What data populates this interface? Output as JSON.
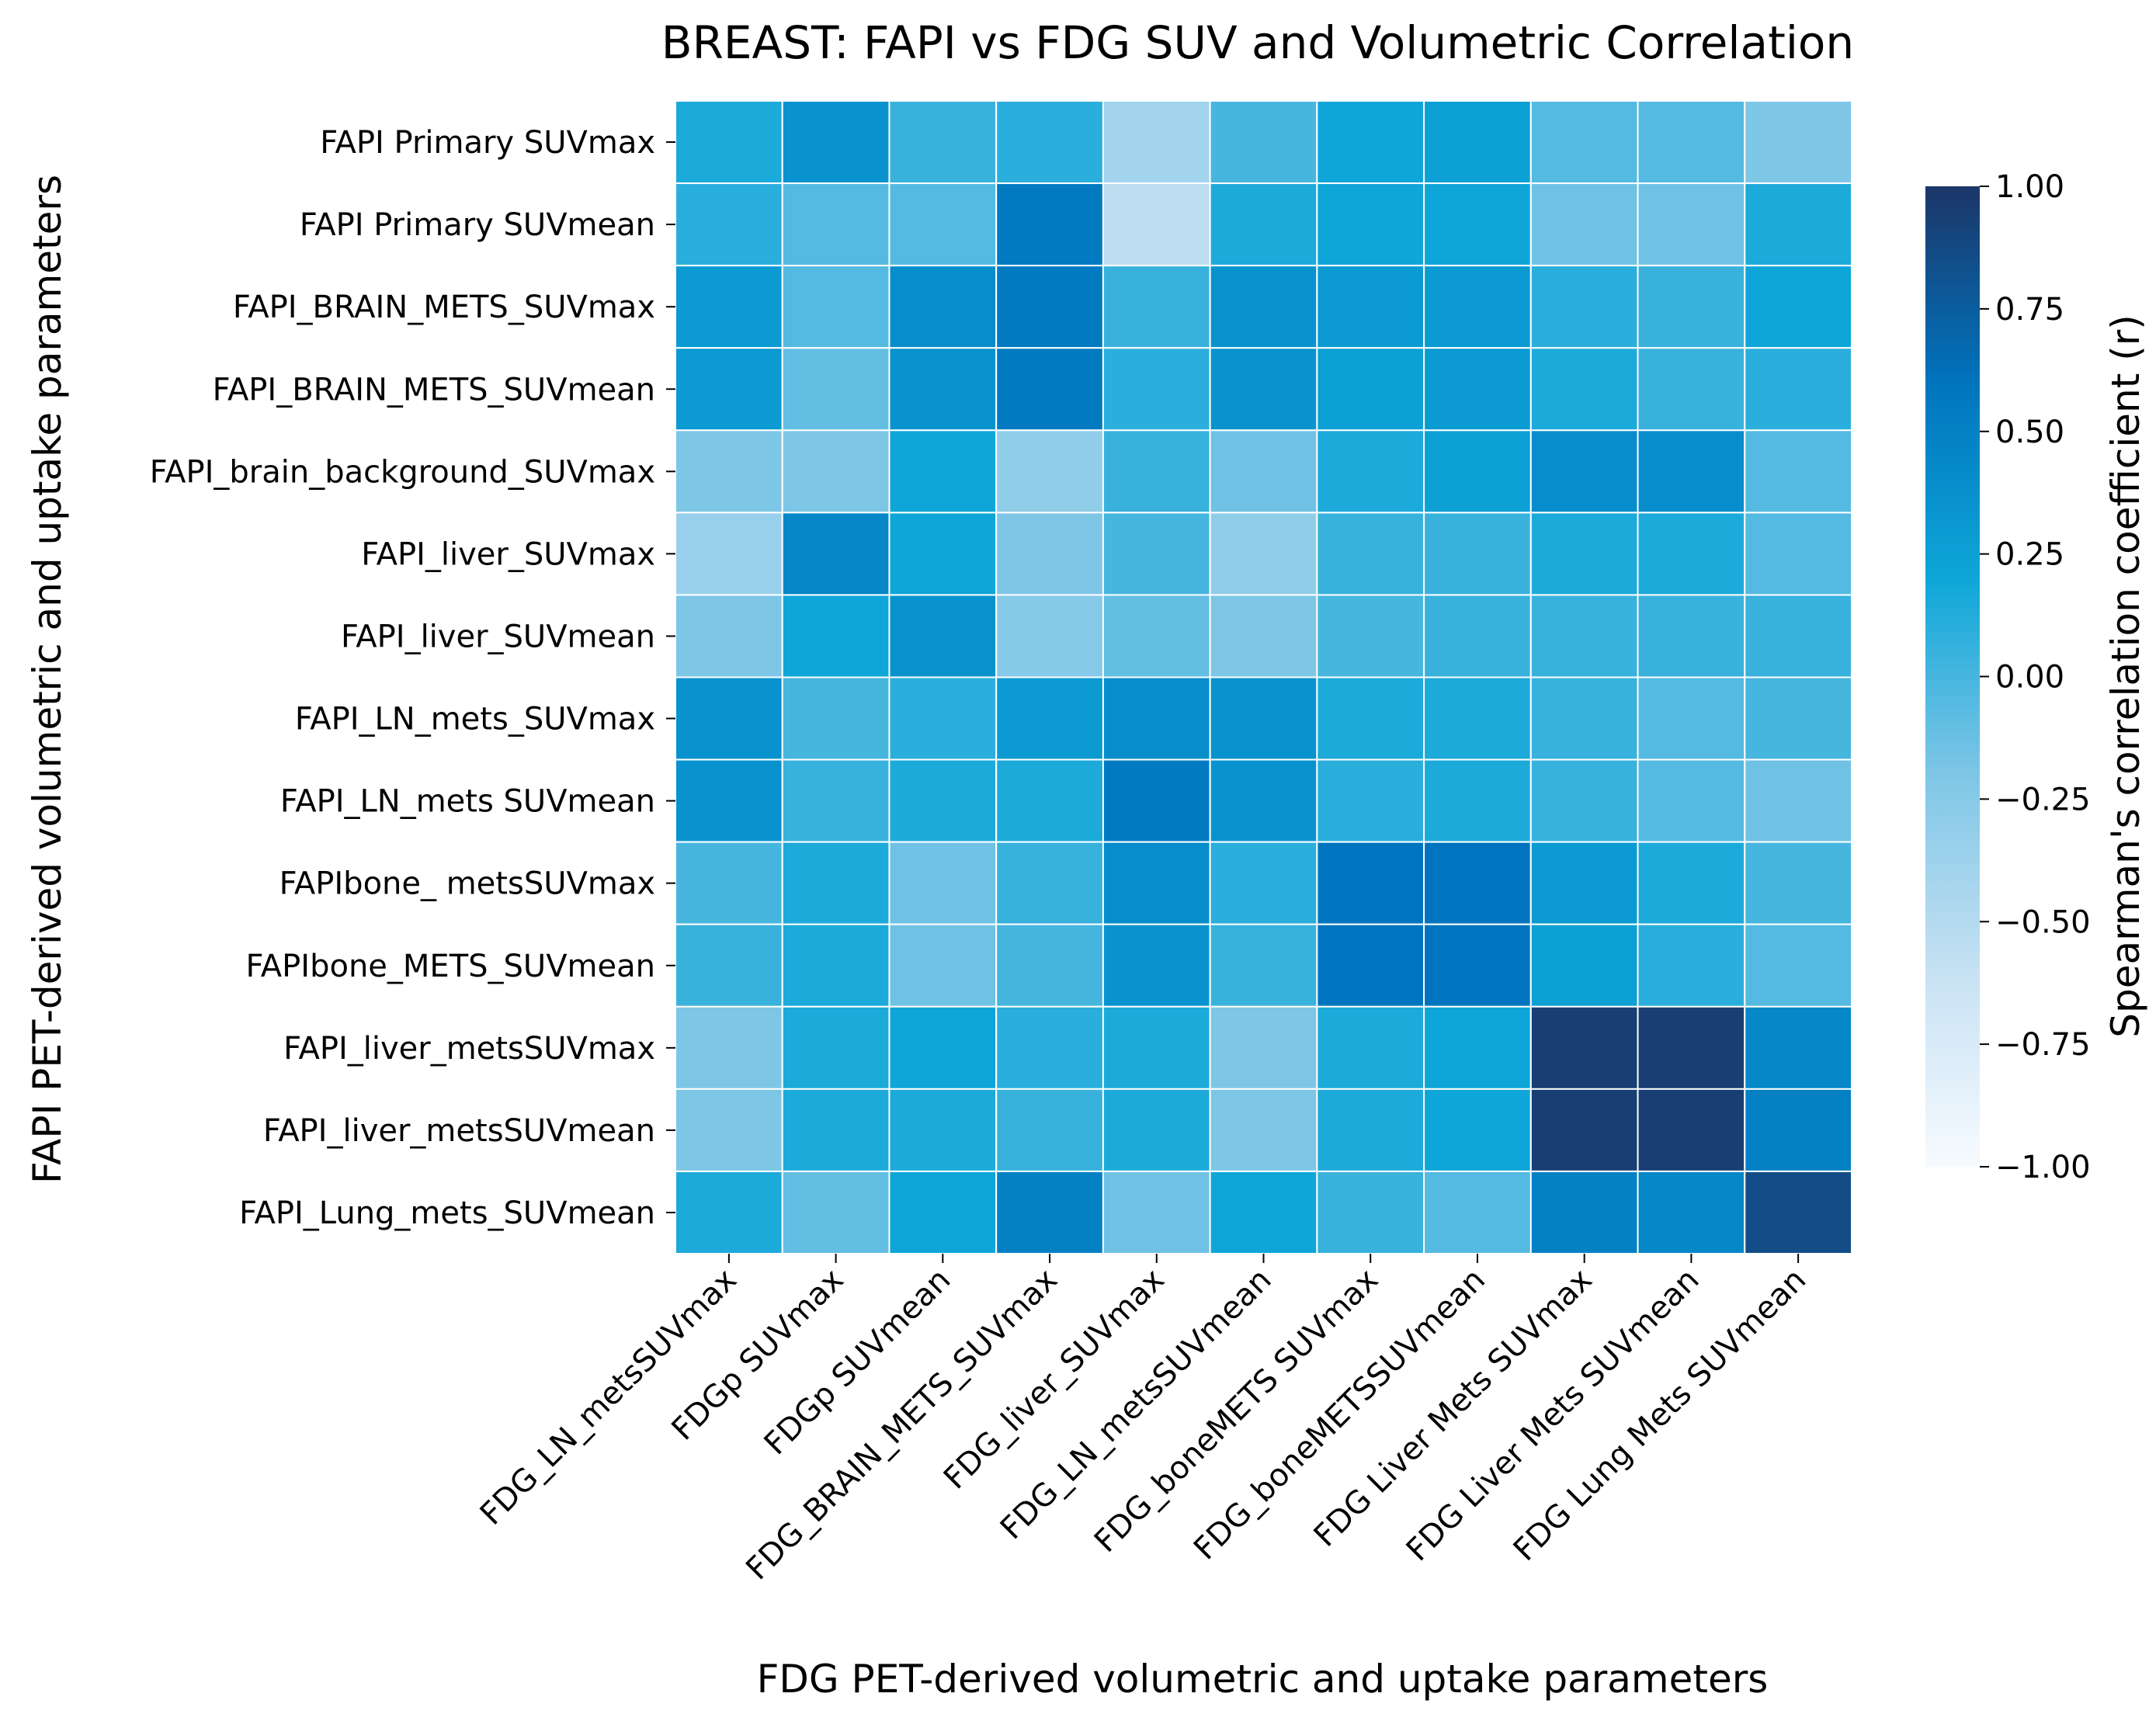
{
  "chart_data": {
    "type": "heatmap",
    "title": "BREAST: FAPI vs FDG SUV and Volumetric Correlation",
    "xlabel": "FDG PET-derived volumetric and uptake parameters",
    "ylabel": "FAPI PET-derived volumetric and uptake parameters",
    "colorbar_label": "Spearman's correlation coefficient (r)",
    "colorbar_ticks": [
      "1.00",
      "0.75",
      "0.50",
      "0.25",
      "0.00",
      "−0.25",
      "−0.50",
      "−0.75",
      "−1.00"
    ],
    "vmin": -1.0,
    "vmax": 1.0,
    "colormap": [
      "#f7fbff",
      "#c6e1f3",
      "#7ec6e6",
      "#0ea6d8",
      "#0074be",
      "#1c3668"
    ],
    "grid_color": "#ffffff",
    "x_categories": [
      "FDG_LN_metsSUVmax",
      "FDGp SUVmax",
      "FDGp SUVmean",
      "FDG_BRAIN_METS_SUVmax",
      "FDG_liver_SUVmax",
      "FDG_LN_metsSUVmean",
      "FDG_boneMETS SUVmax",
      "FDG_boneMETSSUVmean",
      "FDG Liver Mets SUVmax",
      "FDG Liver Mets SUVmean",
      "FDG Lung Mets SUVmean"
    ],
    "y_categories": [
      "FAPI Primary SUVmax",
      "FAPI Primary SUVmean",
      "FAPI_BRAIN_METS_SUVmax",
      "FAPI_BRAIN_METS_SUVmean",
      "FAPI_brain_background_SUVmax",
      "FAPI_liver_SUVmax",
      "FAPI_liver_SUVmean",
      "FAPI_LN_mets_SUVmax",
      "FAPI_LN_mets SUVmean",
      "FAPIbone_ metsSUVmax",
      "FAPIbone_METS_SUVmean",
      "FAPI_liver_metsSUVmax",
      "FAPI_liver_metsSUVmean",
      "FAPI_Lung_mets_SUVmean"
    ],
    "values": [
      [
        0.15,
        0.35,
        0.05,
        0.1,
        -0.4,
        0.0,
        0.2,
        0.25,
        -0.05,
        -0.05,
        -0.2
      ],
      [
        0.1,
        -0.05,
        -0.05,
        0.55,
        -0.55,
        0.15,
        0.2,
        0.2,
        -0.15,
        -0.15,
        0.15
      ],
      [
        0.3,
        -0.05,
        0.4,
        0.55,
        0.05,
        0.35,
        0.3,
        0.3,
        0.1,
        0.05,
        0.2
      ],
      [
        0.3,
        -0.1,
        0.35,
        0.55,
        0.1,
        0.35,
        0.25,
        0.3,
        0.15,
        0.05,
        0.1
      ],
      [
        -0.2,
        -0.2,
        0.2,
        -0.3,
        0.05,
        -0.15,
        0.15,
        0.25,
        0.4,
        0.4,
        -0.05
      ],
      [
        -0.35,
        0.45,
        0.2,
        -0.2,
        0.0,
        -0.3,
        0.05,
        0.05,
        0.15,
        0.15,
        -0.05
      ],
      [
        -0.2,
        0.2,
        0.35,
        -0.25,
        -0.1,
        -0.2,
        0.0,
        0.05,
        0.05,
        0.05,
        0.05
      ],
      [
        0.35,
        0.0,
        0.1,
        0.3,
        0.4,
        0.35,
        0.15,
        0.15,
        0.05,
        -0.05,
        0.0
      ],
      [
        0.35,
        0.05,
        0.15,
        0.15,
        0.55,
        0.35,
        0.1,
        0.15,
        0.05,
        -0.05,
        -0.15
      ],
      [
        0.0,
        0.15,
        -0.15,
        0.05,
        0.4,
        0.1,
        0.6,
        0.6,
        0.3,
        0.15,
        0.0
      ],
      [
        0.05,
        0.15,
        -0.15,
        0.0,
        0.35,
        0.05,
        0.6,
        0.6,
        0.25,
        0.1,
        -0.05
      ],
      [
        -0.2,
        0.15,
        0.2,
        0.1,
        0.15,
        -0.2,
        0.15,
        0.2,
        0.95,
        0.95,
        0.45
      ],
      [
        -0.2,
        0.15,
        0.15,
        0.05,
        0.15,
        -0.2,
        0.15,
        0.2,
        0.95,
        0.95,
        0.5
      ],
      [
        0.15,
        -0.1,
        0.2,
        0.5,
        -0.15,
        0.2,
        0.05,
        -0.05,
        0.5,
        0.45,
        0.85
      ]
    ]
  }
}
